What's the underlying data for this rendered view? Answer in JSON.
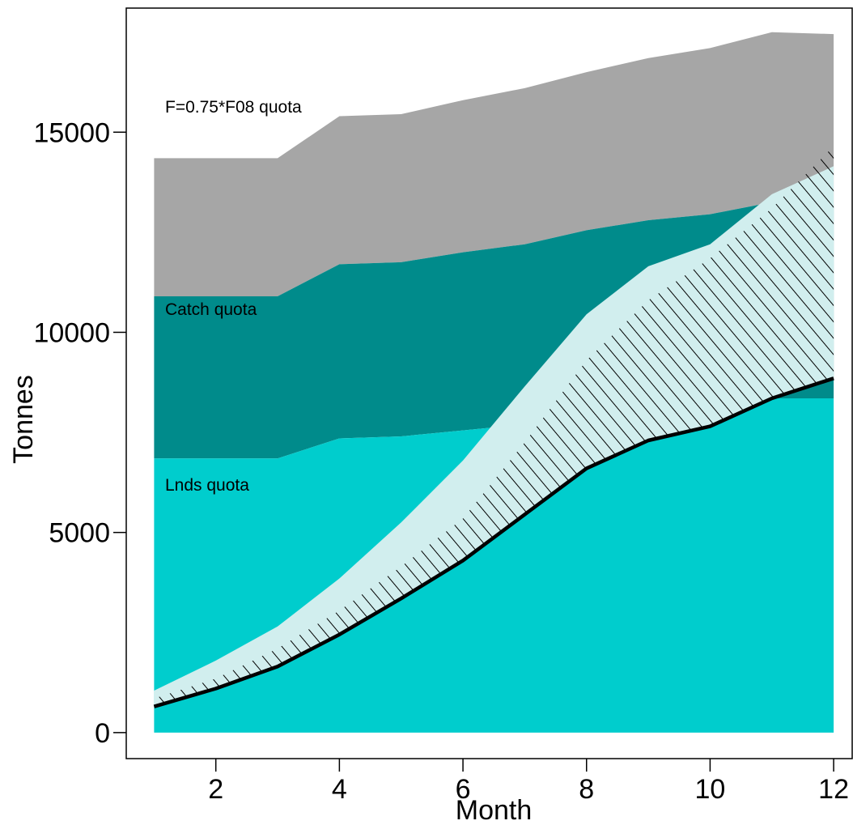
{
  "chart_data": {
    "type": "area",
    "xlabel": "Month",
    "ylabel": "Tonnes",
    "xlim": [
      0.55,
      12.3
    ],
    "ylim": [
      -650,
      18100
    ],
    "xticks": [
      "2",
      "4",
      "6",
      "8",
      "10",
      "12"
    ],
    "yticks": [
      "0",
      "5000",
      "10000",
      "15000"
    ],
    "x": [
      1,
      2,
      3,
      4,
      5,
      6,
      7,
      8,
      9,
      10,
      11,
      12
    ],
    "series": [
      {
        "name": "F=0.75*F08 quota",
        "color": "#a6a6a6",
        "values": [
          14350,
          14350,
          14350,
          15400,
          15450,
          15800,
          16100,
          16500,
          16850,
          17100,
          17500,
          17450
        ]
      },
      {
        "name": "Catch quota",
        "color": "#008b8b",
        "values": [
          10900,
          10900,
          10900,
          11700,
          11750,
          12000,
          12200,
          12550,
          12800,
          12950,
          13250,
          13200
        ]
      },
      {
        "name": "Lnds quota",
        "color": "#00cdcd",
        "values": [
          6850,
          6850,
          6850,
          7350,
          7400,
          7550,
          7700,
          7900,
          8100,
          8200,
          8350,
          8350
        ]
      },
      {
        "name": "",
        "color": "#d1eeee",
        "values": [
          1050,
          1800,
          2650,
          3850,
          5250,
          6800,
          8650,
          10450,
          11650,
          12200,
          13450,
          14150
        ]
      },
      {
        "name": "",
        "color": "#000000",
        "values": [
          850,
          1350,
          2100,
          3050,
          4150,
          5350,
          7250,
          9300,
          10800,
          11850,
          13100,
          14650
        ]
      },
      {
        "name": "",
        "color": "#000000",
        "values": [
          650,
          1100,
          1650,
          2450,
          3350,
          4300,
          5450,
          6600,
          7300,
          7650,
          8350,
          8850
        ]
      }
    ],
    "grid": false,
    "legend": "none"
  }
}
